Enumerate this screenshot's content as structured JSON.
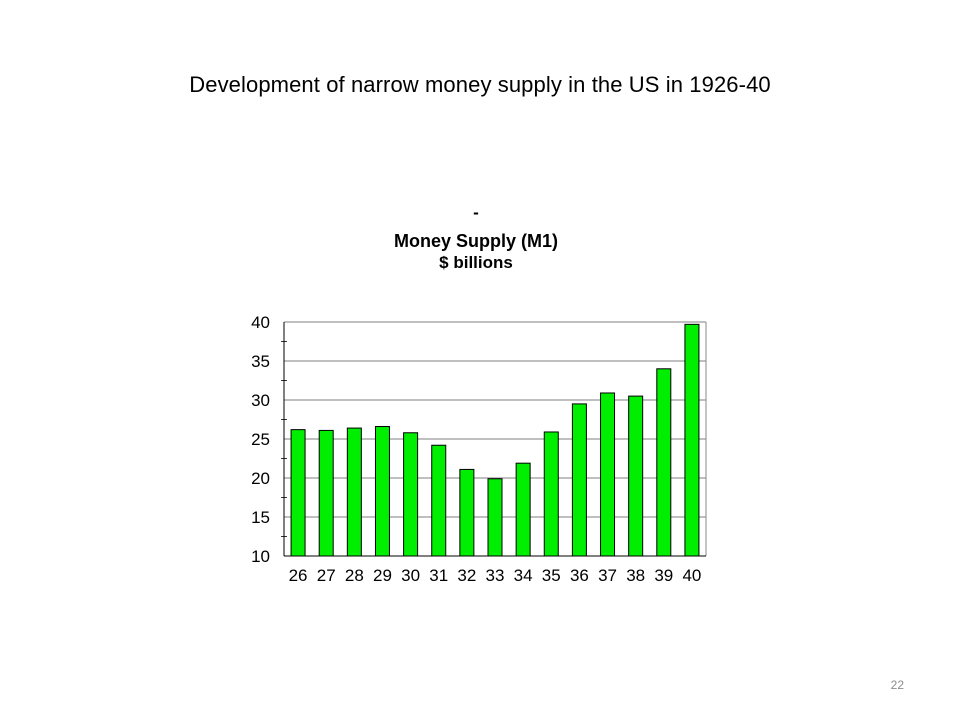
{
  "slide": {
    "title": "Development of narrow money supply in the US in 1926-40",
    "page_number": "22"
  },
  "chart_data": {
    "type": "bar",
    "title_lines": [
      "-",
      "Money Supply (M1)",
      "$ billions"
    ],
    "xlabel": "",
    "ylabel": "",
    "categories": [
      "26",
      "27",
      "28",
      "29",
      "30",
      "31",
      "32",
      "33",
      "34",
      "35",
      "36",
      "37",
      "38",
      "39",
      "40"
    ],
    "values": [
      26.2,
      26.1,
      26.4,
      26.6,
      25.8,
      24.2,
      21.1,
      19.9,
      21.9,
      25.9,
      29.5,
      30.9,
      30.5,
      34.0,
      39.7
    ],
    "ylim": [
      10,
      40
    ],
    "yticks": [
      10,
      15,
      20,
      25,
      30,
      35,
      40
    ],
    "grid": true,
    "legend": "none",
    "colors": {
      "bar_fill": "#00ee00",
      "bar_stroke": "#000000",
      "gridline": "#000000",
      "axis": "#000000"
    }
  }
}
